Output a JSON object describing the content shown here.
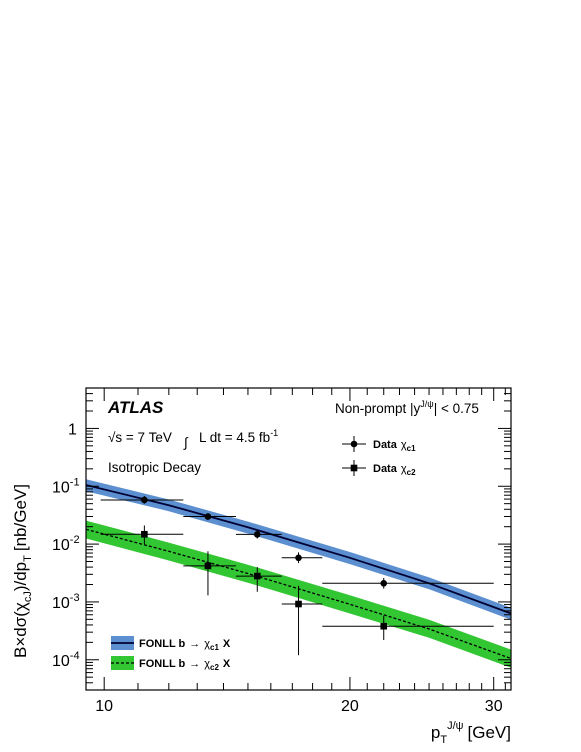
{
  "chart_data": {
    "type": "scatter",
    "title": "",
    "xlabel": "p_T^{J/ψ} [GeV]",
    "xlabel_main": "p",
    "xlabel_sub": "T",
    "xlabel_sup": "J/ψ",
    "xlabel_unit": "[GeV]",
    "ylabel": "B×dσ(χ_cJ)/dp_T [nb/GeV]",
    "ylabel_pre": "B×dσ(χ",
    "ylabel_sub": "cJ",
    "ylabel_post": ")/dp",
    "ylabel_sub2": "T",
    "ylabel_unit": "[nb/GeV]",
    "x_scale": "log",
    "y_scale": "log",
    "xlim": [
      9.5,
      31.5
    ],
    "ylim": [
      3e-05,
      5
    ],
    "x_ticks": [
      10,
      20,
      30
    ],
    "y_ticks": [
      {
        "value": 0.0001,
        "base": "10",
        "exp": "-4"
      },
      {
        "value": 0.001,
        "base": "10",
        "exp": "-3"
      },
      {
        "value": 0.01,
        "base": "10",
        "exp": "-2"
      },
      {
        "value": 0.1,
        "base": "10",
        "exp": "-1"
      },
      {
        "value": 1,
        "base": "1",
        "exp": ""
      }
    ],
    "series": [
      {
        "name": "Data χ_c1",
        "marker": "circle",
        "points": [
          {
            "x": 11.2,
            "xlo": 9.9,
            "xhi": 12.5,
            "y": 0.058,
            "ylo": 0.05,
            "yhi": 0.068
          },
          {
            "x": 13.4,
            "xlo": 12.5,
            "xhi": 14.5,
            "y": 0.03,
            "ylo": 0.026,
            "yhi": 0.034
          },
          {
            "x": 15.4,
            "xlo": 14.5,
            "xhi": 16.5,
            "y": 0.0147,
            "ylo": 0.0125,
            "yhi": 0.0172
          },
          {
            "x": 17.3,
            "xlo": 16.5,
            "xhi": 18.5,
            "y": 0.0058,
            "ylo": 0.0047,
            "yhi": 0.0072
          },
          {
            "x": 22.0,
            "xlo": 18.5,
            "xhi": 30.0,
            "y": 0.0021,
            "ylo": 0.0017,
            "yhi": 0.0026
          }
        ]
      },
      {
        "name": "Data χ_c2",
        "marker": "square",
        "points": [
          {
            "x": 11.2,
            "xlo": 9.9,
            "xhi": 12.5,
            "y": 0.0148,
            "ylo": 0.01,
            "yhi": 0.021
          },
          {
            "x": 13.4,
            "xlo": 12.5,
            "xhi": 14.5,
            "y": 0.0042,
            "ylo": 0.0013,
            "yhi": 0.0075
          },
          {
            "x": 15.4,
            "xlo": 14.5,
            "xhi": 16.5,
            "y": 0.0028,
            "ylo": 0.0015,
            "yhi": 0.004
          },
          {
            "x": 17.3,
            "xlo": 16.5,
            "xhi": 18.5,
            "y": 0.00092,
            "ylo": 0.00012,
            "yhi": 0.0019
          },
          {
            "x": 22.0,
            "xlo": 18.5,
            "xhi": 30.0,
            "y": 0.00038,
            "ylo": 0.00022,
            "yhi": 0.00058
          }
        ]
      }
    ],
    "bands": [
      {
        "name": "FONLL b → χ_c1 X",
        "color": "#5b8fd0",
        "line_color": "#000033",
        "line_style": "solid",
        "x": [
          9.5,
          12,
          15,
          20,
          25,
          31.5
        ],
        "y": [
          0.105,
          0.047,
          0.0195,
          0.0058,
          0.0021,
          0.00063
        ],
        "lo": [
          0.082,
          0.037,
          0.0152,
          0.0045,
          0.00165,
          0.00049
        ],
        "hi": [
          0.132,
          0.059,
          0.0245,
          0.0073,
          0.00265,
          0.00079
        ]
      },
      {
        "name": "FONLL b → χ_c2 X",
        "color": "#33c633",
        "line_color": "#000000",
        "line_style": "dashed",
        "x": [
          9.5,
          12,
          15,
          20,
          25,
          31.5
        ],
        "y": [
          0.018,
          0.0075,
          0.0031,
          0.00091,
          0.00034,
          0.000105
        ],
        "lo": [
          0.0125,
          0.0052,
          0.00215,
          0.00063,
          0.00024,
          7.3e-05
        ],
        "hi": [
          0.0255,
          0.0106,
          0.0044,
          0.0013,
          0.00049,
          0.00015
        ]
      }
    ],
    "annotations": {
      "experiment": "ATLAS",
      "sqrt_s": "s = 7 TeV",
      "sqrt_symbol": "√",
      "integral_symbol": "∫",
      "lumi_text": "L dt = 4.5 fb",
      "lumi_exp": "-1",
      "decay": "Isotropic Decay",
      "selection_pre": "Non-prompt |y",
      "selection_sup": "J/ψ",
      "selection_post": "| < 0.75"
    },
    "legend": {
      "data_c1_label": "Data",
      "data_c1_chi": "χ",
      "data_c1_sub": "c1",
      "data_c2_label": "Data",
      "data_c2_chi": "χ",
      "data_c2_sub": "c2",
      "band_c1_pre": "FONLL b",
      "band_c1_arrow": "→",
      "band_c1_chi": "χ",
      "band_c1_sub": "c1",
      "band_c1_post": "X",
      "band_c2_pre": "FONLL b",
      "band_c2_arrow": "→",
      "band_c2_chi": "χ",
      "band_c2_sub": "c2",
      "band_c2_post": "X"
    },
    "grid": false
  }
}
